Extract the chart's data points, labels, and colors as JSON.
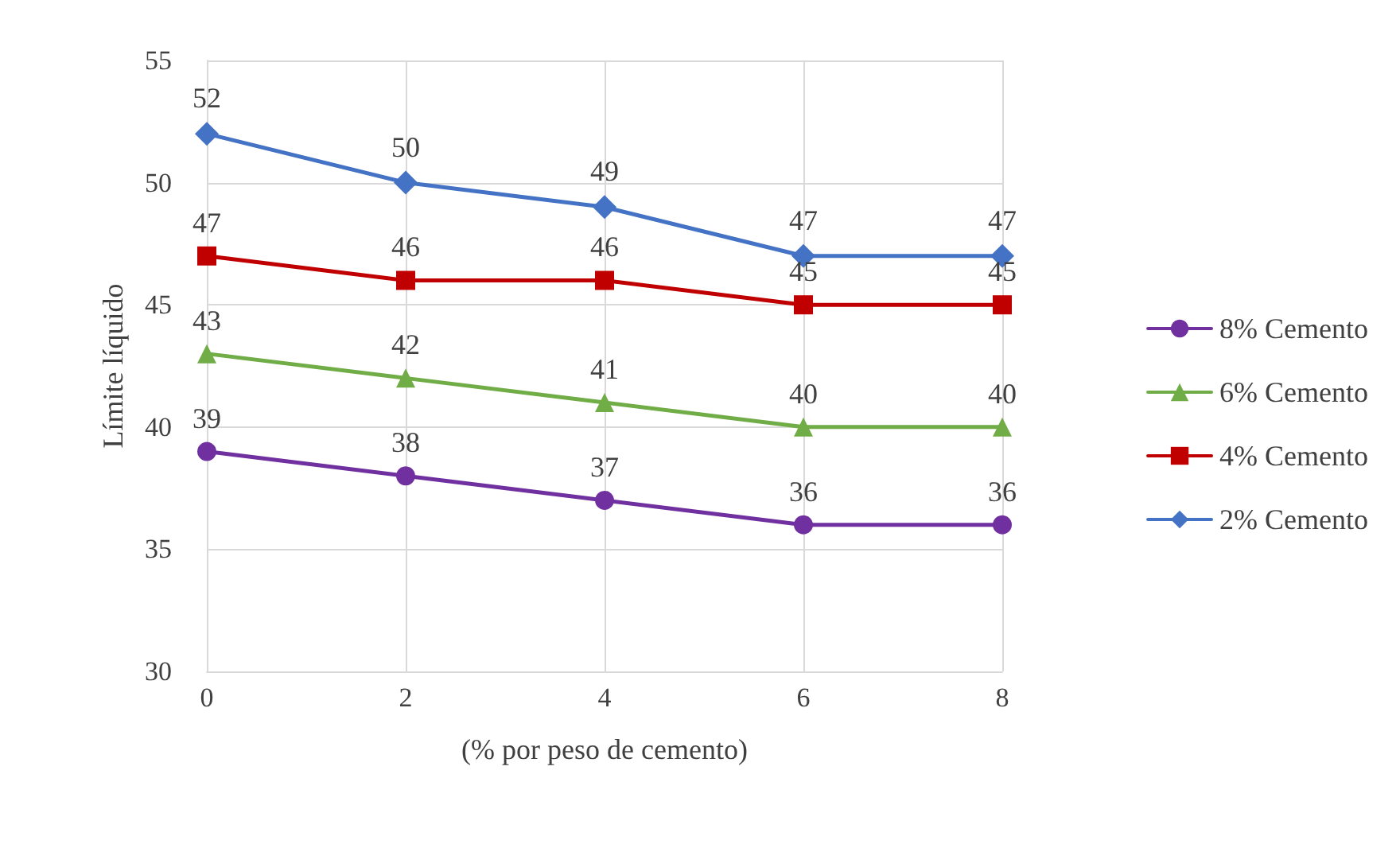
{
  "chart_data": {
    "type": "line",
    "xlabel": "(% por peso de cemento)",
    "ylabel": "Límite líquido",
    "x": [
      0,
      2,
      4,
      6,
      8
    ],
    "xlim": [
      0,
      8
    ],
    "xticks": [
      0,
      2,
      4,
      6,
      8
    ],
    "ylim": [
      30,
      55
    ],
    "yticks": [
      30,
      35,
      40,
      45,
      50,
      55
    ],
    "grid": true,
    "legend": "right",
    "data_labels": true,
    "line_style": "solid",
    "series": [
      {
        "name": "8% Cemento",
        "color": "#7030a0",
        "marker": "circle",
        "values": [
          39,
          38,
          37,
          36,
          36
        ]
      },
      {
        "name": "6% Cemento",
        "color": "#70ad47",
        "marker": "triangle",
        "values": [
          43,
          42,
          41,
          40,
          40
        ]
      },
      {
        "name": "4% Cemento",
        "color": "#c00000",
        "marker": "square",
        "values": [
          47,
          46,
          46,
          45,
          45
        ]
      },
      {
        "name": "2% Cemento",
        "color": "#4472c4",
        "marker": "diamond",
        "values": [
          52,
          50,
          49,
          47,
          47
        ]
      }
    ]
  }
}
